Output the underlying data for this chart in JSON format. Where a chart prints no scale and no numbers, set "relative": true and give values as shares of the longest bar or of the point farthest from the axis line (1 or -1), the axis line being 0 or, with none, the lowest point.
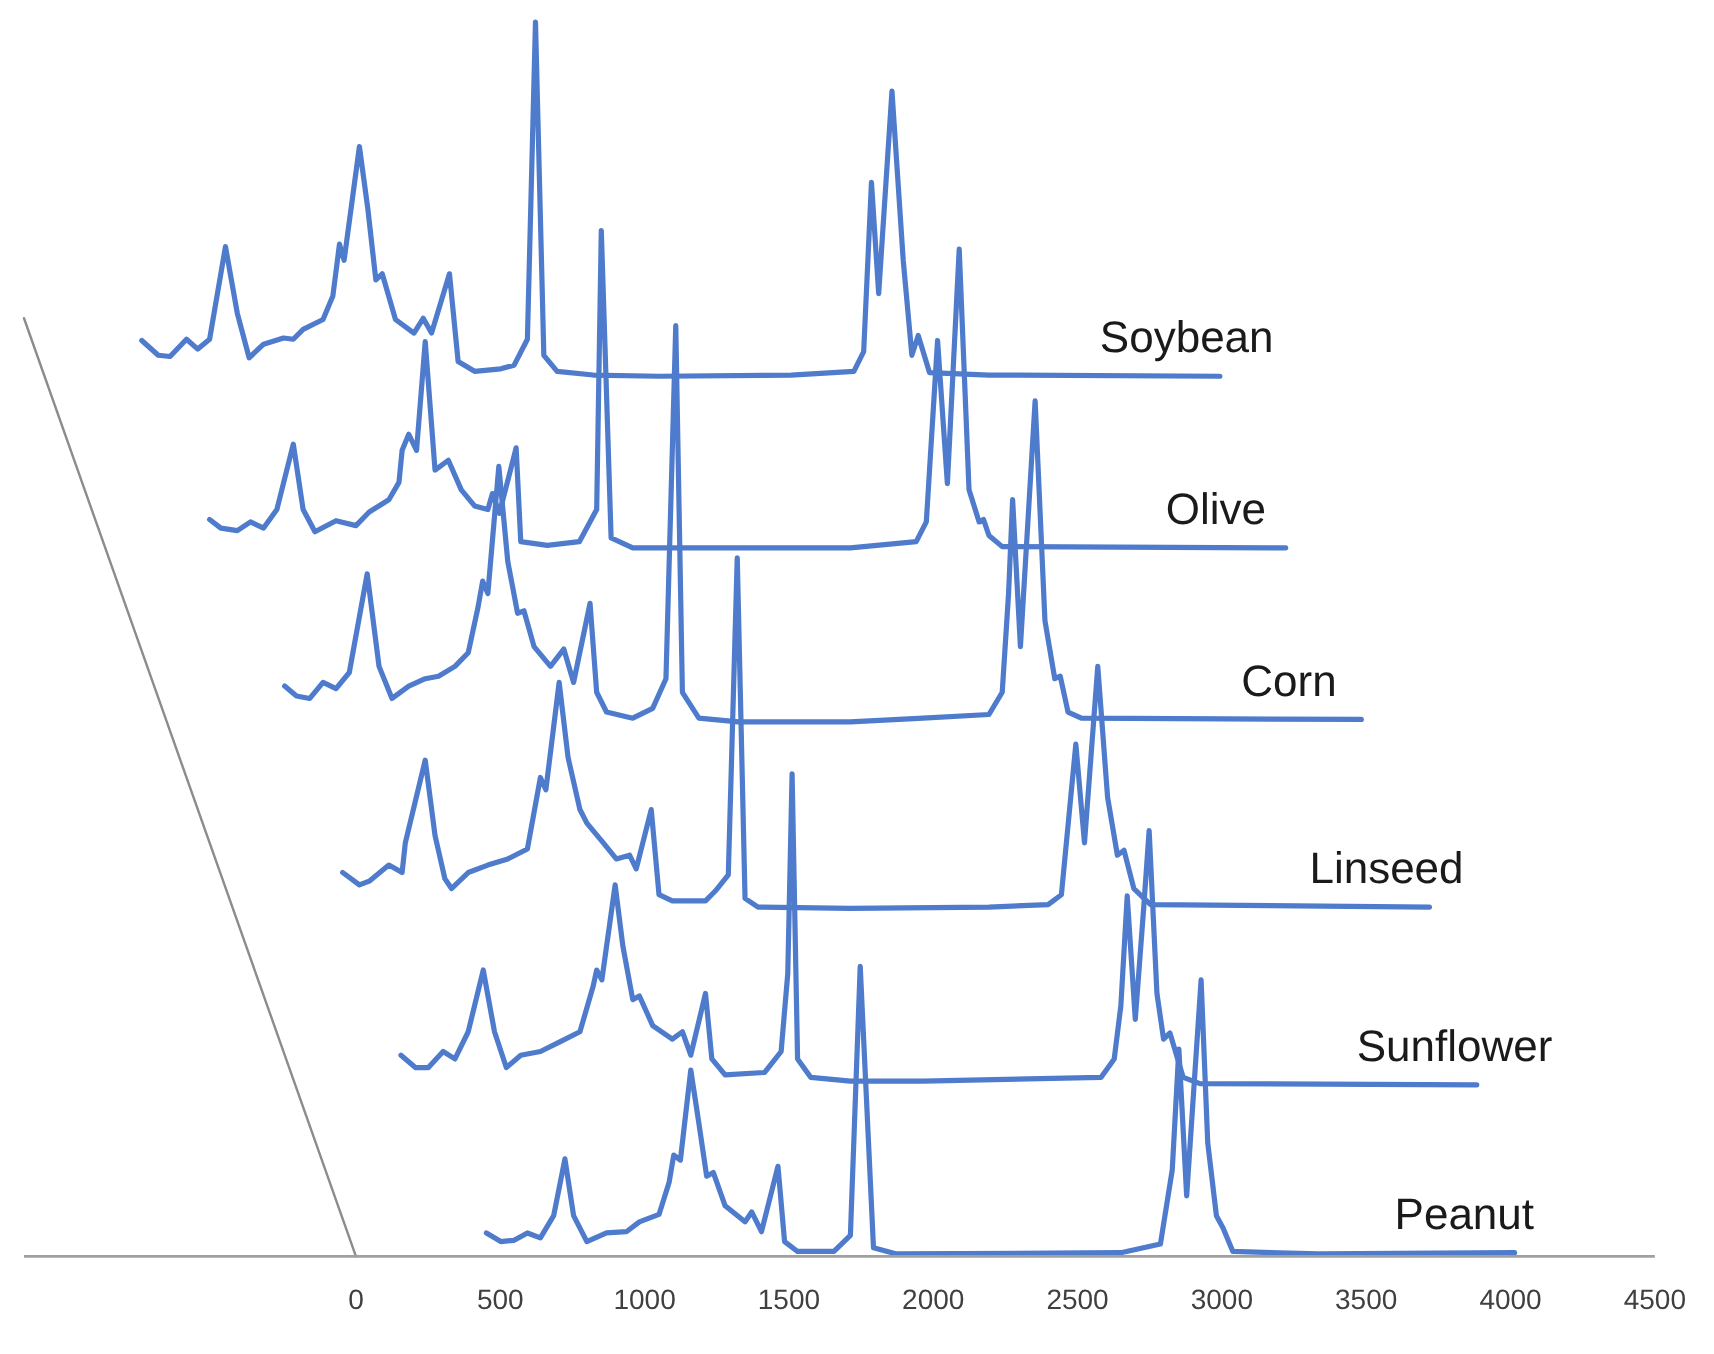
{
  "chart_data": {
    "type": "line",
    "relative": true,
    "xlim": [
      -1150,
      4500
    ],
    "xticks": [
      0,
      500,
      1000,
      1500,
      2000,
      2500,
      3000,
      3500,
      4000,
      4500
    ],
    "series": [
      {
        "name": "Soybean",
        "color": "#4f7bcc",
        "x": [
          -742,
          -685,
          -644,
          -587,
          -548,
          -507,
          -452,
          -411,
          -370,
          -320,
          -251,
          -217,
          -183,
          -114,
          -80,
          -57,
          -41,
          12,
          41,
          69,
          91,
          137,
          201,
          233,
          262,
          324,
          354,
          411,
          502,
          548,
          594,
          622,
          651,
          697,
          822,
          1050,
          1508,
          1725,
          1759,
          1786,
          1811,
          1857,
          1896,
          1926,
          1948,
          1987,
          2193,
          2993
        ],
        "values": [
          0.742,
          0.73,
          0.729,
          0.743,
          0.735,
          0.743,
          0.818,
          0.764,
          0.728,
          0.739,
          0.744,
          0.743,
          0.751,
          0.759,
          0.778,
          0.82,
          0.807,
          0.899,
          0.849,
          0.791,
          0.796,
          0.759,
          0.748,
          0.76,
          0.748,
          0.796,
          0.725,
          0.717,
          0.719,
          0.722,
          0.743,
          1.0,
          0.73,
          0.717,
          0.714,
          0.713,
          0.714,
          0.717,
          0.733,
          0.87,
          0.78,
          0.944,
          0.807,
          0.73,
          0.746,
          0.716,
          0.714,
          0.713
        ]
      },
      {
        "name": "Olive",
        "color": "#4f7bcc",
        "x": [
          -507,
          -468,
          -411,
          -365,
          -320,
          -274,
          -217,
          -183,
          -142,
          -69,
          0,
          46,
          114,
          149,
          160,
          183,
          210,
          240,
          274,
          320,
          365,
          411,
          457,
          473,
          497,
          555,
          571,
          663,
          774,
          834,
          850,
          884,
          959,
          1279,
          1713,
          1941,
          1976,
          2015,
          2049,
          2090,
          2124,
          2159,
          2174,
          2193,
          2239,
          3221
        ],
        "values": [
          0.597,
          0.59,
          0.588,
          0.595,
          0.59,
          0.605,
          0.658,
          0.605,
          0.587,
          0.596,
          0.592,
          0.603,
          0.613,
          0.627,
          0.653,
          0.666,
          0.653,
          0.741,
          0.637,
          0.645,
          0.621,
          0.608,
          0.605,
          0.618,
          0.602,
          0.655,
          0.579,
          0.576,
          0.579,
          0.605,
          0.831,
          0.582,
          0.574,
          0.574,
          0.574,
          0.579,
          0.595,
          0.742,
          0.626,
          0.816,
          0.621,
          0.595,
          0.597,
          0.584,
          0.575,
          0.574
        ]
      },
      {
        "name": "Corn",
        "color": "#4f7bcc",
        "x": [
          -247,
          -206,
          -160,
          -114,
          -69,
          -23,
          39,
          80,
          125,
          183,
          240,
          286,
          343,
          389,
          423,
          439,
          457,
          495,
          526,
          560,
          582,
          617,
          674,
          720,
          754,
          811,
          834,
          868,
          959,
          1028,
          1074,
          1108,
          1131,
          1188,
          1325,
          1713,
          1965,
          2193,
          2239,
          2261,
          2275,
          2302,
          2353,
          2387,
          2421,
          2440,
          2467,
          2513,
          3483
        ],
        "values": [
          0.462,
          0.454,
          0.452,
          0.465,
          0.46,
          0.473,
          0.553,
          0.478,
          0.452,
          0.462,
          0.468,
          0.47,
          0.478,
          0.489,
          0.526,
          0.547,
          0.537,
          0.64,
          0.563,
          0.521,
          0.523,
          0.494,
          0.478,
          0.492,
          0.465,
          0.529,
          0.457,
          0.441,
          0.436,
          0.444,
          0.468,
          0.754,
          0.457,
          0.436,
          0.433,
          0.433,
          0.436,
          0.439,
          0.457,
          0.537,
          0.613,
          0.494,
          0.693,
          0.515,
          0.468,
          0.47,
          0.441,
          0.436,
          0.435
        ]
      },
      {
        "name": "Linseed",
        "color": "#4f7bcc",
        "x": [
          -46,
          12,
          46,
          114,
          160,
          171,
          240,
          274,
          308,
          331,
          389,
          457,
          526,
          594,
          639,
          658,
          704,
          735,
          776,
          800,
          857,
          902,
          948,
          971,
          1023,
          1050,
          1096,
          1211,
          1245,
          1290,
          1321,
          1348,
          1393,
          1713,
          2193,
          2398,
          2444,
          2494,
          2524,
          2570,
          2604,
          2638,
          2661,
          2695,
          2753,
          3719
        ],
        "values": [
          0.311,
          0.301,
          0.304,
          0.317,
          0.311,
          0.335,
          0.402,
          0.341,
          0.306,
          0.298,
          0.311,
          0.317,
          0.322,
          0.33,
          0.388,
          0.378,
          0.465,
          0.404,
          0.362,
          0.351,
          0.335,
          0.322,
          0.325,
          0.314,
          0.362,
          0.293,
          0.288,
          0.288,
          0.296,
          0.309,
          0.566,
          0.29,
          0.283,
          0.282,
          0.283,
          0.285,
          0.293,
          0.415,
          0.335,
          0.478,
          0.372,
          0.325,
          0.329,
          0.298,
          0.285,
          0.283
        ]
      },
      {
        "name": "Sunflower",
        "color": "#4f7bcc",
        "x": [
          156,
          206,
          251,
          302,
          343,
          389,
          441,
          480,
          521,
          571,
          639,
          708,
          776,
          822,
          834,
          852,
          898,
          925,
          959,
          982,
          1028,
          1096,
          1131,
          1160,
          1211,
          1233,
          1279,
          1416,
          1473,
          1496,
          1511,
          1530,
          1576,
          1713,
          1965,
          2581,
          2627,
          2650,
          2672,
          2700,
          2729,
          2748,
          2775,
          2798,
          2820,
          2866,
          2924,
          3883
        ],
        "values": [
          0.163,
          0.153,
          0.153,
          0.166,
          0.16,
          0.182,
          0.232,
          0.182,
          0.153,
          0.163,
          0.166,
          0.174,
          0.182,
          0.219,
          0.232,
          0.224,
          0.301,
          0.251,
          0.208,
          0.211,
          0.187,
          0.176,
          0.182,
          0.163,
          0.213,
          0.16,
          0.147,
          0.149,
          0.166,
          0.229,
          0.391,
          0.16,
          0.145,
          0.142,
          0.142,
          0.145,
          0.16,
          0.203,
          0.292,
          0.192,
          0.282,
          0.345,
          0.213,
          0.176,
          0.181,
          0.145,
          0.14,
          0.139
        ]
      },
      {
        "name": "Peanut",
        "color": "#4f7bcc",
        "x": [
          452,
          502,
          548,
          594,
          639,
          685,
          724,
          754,
          800,
          868,
          937,
          982,
          1050,
          1085,
          1101,
          1124,
          1160,
          1188,
          1215,
          1238,
          1279,
          1348,
          1371,
          1405,
          1462,
          1485,
          1530,
          1656,
          1713,
          1747,
          1793,
          1873,
          2650,
          2787,
          2828,
          2851,
          2878,
          2928,
          2951,
          2981,
          3004,
          3038,
          3335,
          4014
        ],
        "values": [
          0.019,
          0.012,
          0.013,
          0.019,
          0.015,
          0.033,
          0.079,
          0.033,
          0.012,
          0.019,
          0.02,
          0.028,
          0.034,
          0.06,
          0.082,
          0.078,
          0.151,
          0.108,
          0.065,
          0.068,
          0.041,
          0.028,
          0.036,
          0.02,
          0.073,
          0.012,
          0.004,
          0.004,
          0.017,
          0.235,
          0.007,
          0.002,
          0.003,
          0.01,
          0.07,
          0.168,
          0.049,
          0.224,
          0.092,
          0.033,
          0.023,
          0.004,
          0.002,
          0.003
        ]
      },
      {
        "color": "#8c8c8c",
        "x": [
          -1150,
          0
        ],
        "values": [
          0.76,
          0
        ]
      }
    ]
  }
}
